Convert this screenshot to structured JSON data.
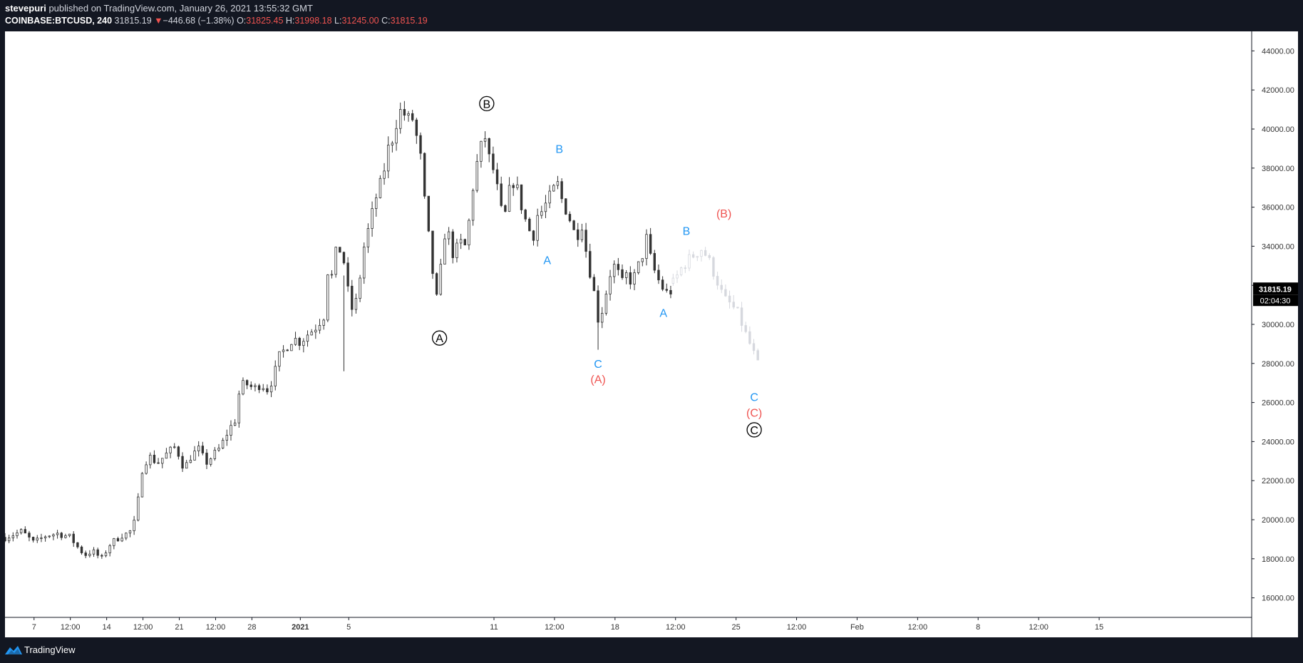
{
  "header": {
    "author": "stevepuri",
    "published_text": "published on TradingView.com, January 26, 2021 13:55:32 GMT",
    "symbol": "COINBASE:BTCUSD, 240",
    "last": "31815.19",
    "change_arrow": "▼",
    "change": "−446.68 (−1.38%)",
    "o_label": "O:",
    "o": "31825.45",
    "h_label": "H:",
    "h": "31998.18",
    "l_label": "L:",
    "l": "31245.00",
    "c_label": "C:",
    "c": "31815.19"
  },
  "footer": {
    "brand": "TradingView",
    "logo_icon": "tradingview-logo-icon"
  },
  "colors": {
    "frame": "#131722",
    "candle": "#333333",
    "projection": "#d6d8de",
    "red": "#ef5350",
    "blue": "#2196f3",
    "black": "#000000"
  },
  "chart_data": {
    "type": "candlestick",
    "symbol": "COINBASE:BTCUSD",
    "interval": "240",
    "ylim": [
      15000,
      45000
    ],
    "y_ticks": [
      16000,
      18000,
      20000,
      22000,
      24000,
      26000,
      28000,
      30000,
      32000,
      34000,
      36000,
      38000,
      40000,
      42000,
      44000
    ],
    "y_tick_labels": [
      "16000.00",
      "18000.00",
      "20000.00",
      "22000.00",
      "24000.00",
      "26000.00",
      "28000.00",
      "30000.00",
      "32000.00",
      "34000.00",
      "36000.00",
      "38000.00",
      "40000.00",
      "42000.00",
      "44000.00"
    ],
    "x_domain_days": [
      -26.2,
      25.3
    ],
    "x_ticks": [
      {
        "day": -25,
        "label": "7"
      },
      {
        "day": -23.5,
        "label": "12:00"
      },
      {
        "day": -22,
        "label": "14"
      },
      {
        "day": -20.5,
        "label": "12:00"
      },
      {
        "day": -19,
        "label": "21"
      },
      {
        "day": -17.5,
        "label": "12:00"
      },
      {
        "day": -16,
        "label": "28"
      },
      {
        "day": -14,
        "label": "2021"
      },
      {
        "day": -12,
        "label": "5"
      },
      {
        "day": -6,
        "label": "11"
      },
      {
        "day": -3.5,
        "label": "12:00"
      },
      {
        "day": -1,
        "label": "18"
      },
      {
        "day": 1.5,
        "label": "12:00"
      },
      {
        "day": 4,
        "label": "25"
      },
      {
        "day": 6.5,
        "label": "12:00"
      },
      {
        "day": 9,
        "label": "Feb"
      },
      {
        "day": 11.5,
        "label": "12:00"
      },
      {
        "day": 14,
        "label": "8"
      },
      {
        "day": 16.5,
        "label": "12:00"
      },
      {
        "day": 19,
        "label": "15"
      }
    ],
    "price_path": [
      [
        -26.2,
        19100
      ],
      [
        -25.5,
        19400
      ],
      [
        -25.0,
        18800
      ],
      [
        -24.5,
        19200
      ],
      [
        -24.0,
        19300
      ],
      [
        -23.5,
        19100
      ],
      [
        -23.2,
        18600
      ],
      [
        -22.9,
        18200
      ],
      [
        -22.6,
        18400
      ],
      [
        -22.2,
        18000
      ],
      [
        -21.9,
        18700
      ],
      [
        -21.4,
        19200
      ],
      [
        -21.1,
        19300
      ],
      [
        -20.9,
        19600
      ],
      [
        -20.7,
        21000
      ],
      [
        -20.5,
        22900
      ],
      [
        -20.2,
        23200
      ],
      [
        -19.9,
        22900
      ],
      [
        -19.5,
        23400
      ],
      [
        -19.2,
        23700
      ],
      [
        -19.0,
        23300
      ],
      [
        -18.8,
        22600
      ],
      [
        -18.5,
        23300
      ],
      [
        -18.2,
        23600
      ],
      [
        -17.9,
        22900
      ],
      [
        -17.6,
        23300
      ],
      [
        -17.3,
        23700
      ],
      [
        -17.0,
        24500
      ],
      [
        -16.7,
        25100
      ],
      [
        -16.5,
        26700
      ],
      [
        -16.3,
        27000
      ],
      [
        -15.9,
        26700
      ],
      [
        -15.6,
        27000
      ],
      [
        -15.4,
        26600
      ],
      [
        -15.1,
        27300
      ],
      [
        -14.9,
        28300
      ],
      [
        -14.6,
        28800
      ],
      [
        -14.3,
        29300
      ],
      [
        -14.0,
        29100
      ],
      [
        -13.7,
        29500
      ],
      [
        -13.4,
        29800
      ],
      [
        -13.0,
        30500
      ],
      [
        -12.9,
        32800
      ],
      [
        -12.6,
        32300
      ],
      [
        -12.5,
        34300
      ],
      [
        -12.2,
        33200
      ],
      [
        -12.0,
        31400
      ],
      [
        -11.8,
        30500
      ],
      [
        -11.6,
        31800
      ],
      [
        -11.4,
        33800
      ],
      [
        -11.1,
        35300
      ],
      [
        -10.9,
        36400
      ],
      [
        -10.6,
        37500
      ],
      [
        -10.4,
        38900
      ],
      [
        -10.2,
        39500
      ],
      [
        -10.0,
        40500
      ],
      [
        -9.8,
        41100
      ],
      [
        -9.6,
        40400
      ],
      [
        -9.4,
        40700
      ],
      [
        -9.2,
        39600
      ],
      [
        -9.0,
        38300
      ],
      [
        -8.9,
        36700
      ],
      [
        -8.8,
        35500
      ],
      [
        -8.6,
        33500
      ],
      [
        -8.4,
        31000
      ],
      [
        -8.2,
        32800
      ],
      [
        -8.0,
        35000
      ],
      [
        -7.8,
        34300
      ],
      [
        -7.6,
        33000
      ],
      [
        -7.5,
        34300
      ],
      [
        -7.2,
        34000
      ],
      [
        -7.0,
        35500
      ],
      [
        -6.8,
        37800
      ],
      [
        -6.6,
        38700
      ],
      [
        -6.4,
        39800
      ],
      [
        -6.2,
        38500
      ],
      [
        -6.0,
        37800
      ],
      [
        -5.8,
        36500
      ],
      [
        -5.6,
        35100
      ],
      [
        -5.4,
        36700
      ],
      [
        -5.2,
        37300
      ],
      [
        -5.0,
        36800
      ],
      [
        -4.8,
        35700
      ],
      [
        -4.6,
        35000
      ],
      [
        -4.4,
        34400
      ],
      [
        -4.2,
        35600
      ],
      [
        -4.0,
        35800
      ],
      [
        -3.8,
        36300
      ],
      [
        -3.6,
        36700
      ],
      [
        -3.4,
        37300
      ],
      [
        -3.2,
        36400
      ],
      [
        -3.0,
        35800
      ],
      [
        -2.8,
        35200
      ],
      [
        -2.6,
        34300
      ],
      [
        -2.4,
        35400
      ],
      [
        -2.2,
        33800
      ],
      [
        -2.0,
        32500
      ],
      [
        -1.8,
        31200
      ],
      [
        -1.7,
        30300
      ],
      [
        -1.5,
        30800
      ],
      [
        -1.3,
        32100
      ],
      [
        -1.1,
        33100
      ],
      [
        -0.9,
        32700
      ],
      [
        -0.7,
        32100
      ],
      [
        -0.5,
        32600
      ],
      [
        -0.3,
        32100
      ],
      [
        -0.1,
        32800
      ],
      [
        0.1,
        33400
      ],
      [
        0.3,
        34400
      ],
      [
        0.5,
        33200
      ],
      [
        0.7,
        32500
      ],
      [
        0.9,
        32000
      ],
      [
        1.1,
        31600
      ],
      [
        1.3,
        31700
      ]
    ],
    "projection_path": [
      [
        1.4,
        32100
      ],
      [
        1.8,
        33000
      ],
      [
        2.2,
        33500
      ],
      [
        2.6,
        33900
      ],
      [
        2.9,
        33200
      ],
      [
        3.2,
        32300
      ],
      [
        3.5,
        31300
      ],
      [
        3.8,
        31000
      ],
      [
        4.1,
        30500
      ],
      [
        4.4,
        29500
      ],
      [
        4.7,
        28600
      ],
      [
        5.0,
        27600
      ]
    ],
    "special_wicks": [
      {
        "day": -12.2,
        "high": 32500,
        "low": 27600
      },
      {
        "day": -1.7,
        "high": 31800,
        "low": 28700
      }
    ],
    "wave_labels": [
      {
        "text": "A",
        "style": "circled",
        "color": "black",
        "day": -8.25,
        "price": 29300
      },
      {
        "text": "B",
        "style": "circled",
        "color": "black",
        "day": -6.3,
        "price": 41300
      },
      {
        "text": "A",
        "style": "plain",
        "color": "blue",
        "day": -3.8,
        "price": 33300
      },
      {
        "text": "B",
        "style": "plain",
        "color": "blue",
        "day": -3.3,
        "price": 39000
      },
      {
        "text": "C",
        "style": "plain",
        "color": "blue",
        "day": -1.7,
        "price": 28000
      },
      {
        "text": "(A)",
        "style": "plain",
        "color": "red",
        "day": -1.7,
        "price": 27200
      },
      {
        "text": "(B)",
        "style": "plain",
        "color": "red",
        "day": 3.5,
        "price": 35700
      },
      {
        "text": "A",
        "style": "plain",
        "color": "blue",
        "day": 1.0,
        "price": 30600
      },
      {
        "text": "B",
        "style": "plain",
        "color": "blue",
        "day": 1.95,
        "price": 34800
      },
      {
        "text": "C",
        "style": "plain",
        "color": "blue",
        "day": 4.75,
        "price": 26300
      },
      {
        "text": "(C)",
        "style": "plain",
        "color": "red",
        "day": 4.75,
        "price": 25500
      },
      {
        "text": "C",
        "style": "circled",
        "color": "black",
        "day": 4.75,
        "price": 24600
      }
    ],
    "price_label": "31815.19",
    "price_label_value": 31815.19,
    "countdown": "02:04:30"
  }
}
